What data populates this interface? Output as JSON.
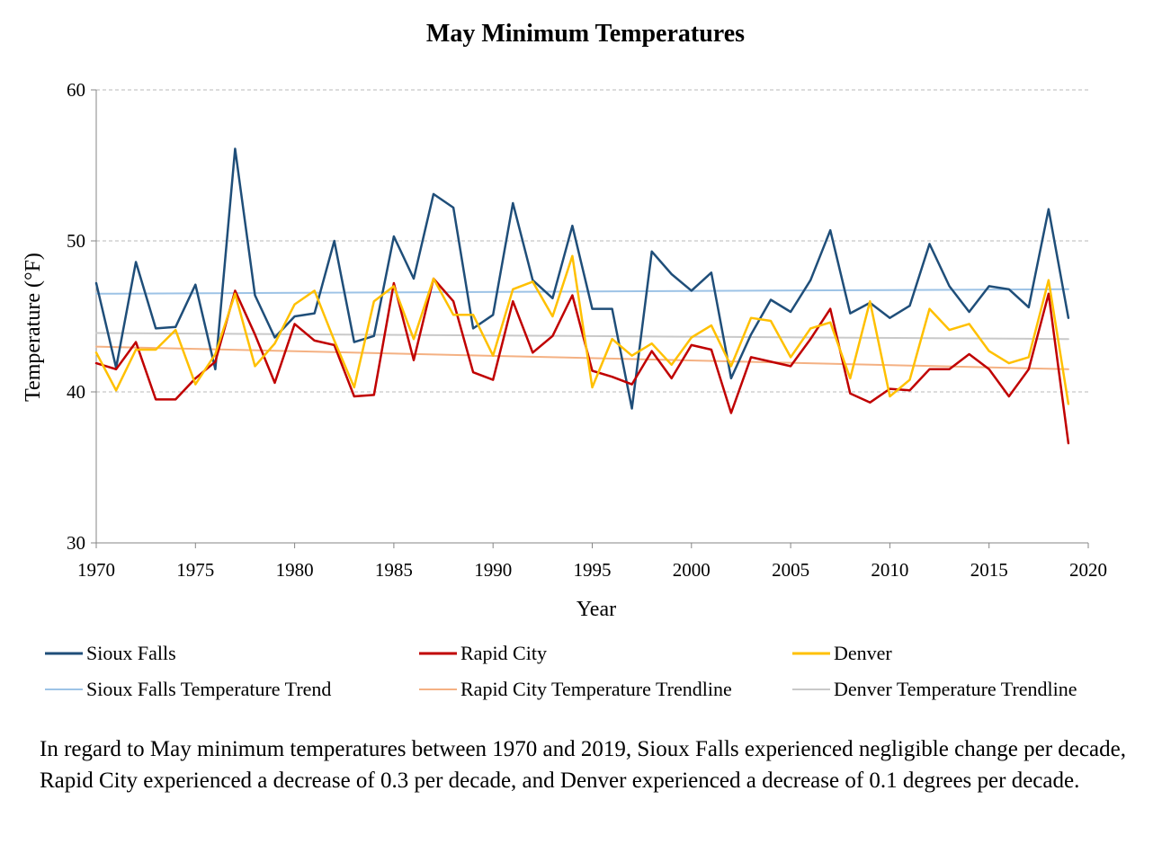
{
  "chart_data": {
    "type": "line",
    "title": "May Minimum Temperatures",
    "xlabel": "Year",
    "ylabel": "Temperature (°F)",
    "xlim": [
      1970,
      2020
    ],
    "ylim": [
      30,
      60
    ],
    "x_ticks": [
      1970,
      1975,
      1980,
      1985,
      1990,
      1995,
      2000,
      2005,
      2010,
      2015,
      2020
    ],
    "y_ticks": [
      30,
      40,
      50,
      60
    ],
    "grid": "horizontal dashed",
    "legend_position": "bottom",
    "x": [
      1970,
      1971,
      1972,
      1973,
      1974,
      1975,
      1976,
      1977,
      1978,
      1979,
      1980,
      1981,
      1982,
      1983,
      1984,
      1985,
      1986,
      1987,
      1988,
      1989,
      1990,
      1991,
      1992,
      1993,
      1994,
      1995,
      1996,
      1997,
      1998,
      1999,
      2000,
      2001,
      2002,
      2003,
      2004,
      2005,
      2006,
      2007,
      2008,
      2009,
      2010,
      2011,
      2012,
      2013,
      2014,
      2015,
      2016,
      2017,
      2018,
      2019
    ],
    "series": [
      {
        "name": "Sioux Falls",
        "color": "#1f4e79",
        "width": 2.5,
        "values": [
          47.2,
          41.6,
          48.6,
          44.2,
          44.3,
          47.1,
          41.5,
          56.1,
          46.4,
          43.6,
          45.0,
          45.2,
          50.0,
          43.3,
          43.7,
          50.3,
          47.5,
          53.1,
          52.2,
          44.2,
          45.1,
          52.5,
          47.4,
          46.2,
          51.0,
          45.5,
          45.5,
          38.9,
          49.3,
          47.8,
          46.7,
          47.9,
          40.9,
          43.8,
          46.1,
          45.3,
          47.4,
          50.7,
          45.2,
          45.9,
          44.9,
          45.7,
          49.8,
          47.0,
          45.3,
          47.0,
          46.8,
          45.6,
          52.1,
          44.9
        ]
      },
      {
        "name": "Rapid City",
        "color": "#c00000",
        "width": 2.5,
        "values": [
          41.9,
          41.5,
          43.3,
          39.5,
          39.5,
          40.9,
          42.0,
          46.7,
          43.8,
          40.6,
          44.5,
          43.4,
          43.1,
          39.7,
          39.8,
          47.2,
          42.1,
          47.5,
          46.0,
          41.3,
          40.8,
          46.0,
          42.6,
          43.7,
          46.4,
          41.4,
          41.0,
          40.5,
          42.7,
          40.9,
          43.1,
          42.8,
          38.6,
          42.3,
          42.0,
          41.7,
          43.5,
          45.5,
          39.9,
          39.3,
          40.2,
          40.1,
          41.5,
          41.5,
          42.5,
          41.5,
          39.7,
          41.5,
          46.5,
          36.6
        ]
      },
      {
        "name": "Denver",
        "color": "#ffc000",
        "width": 2.5,
        "values": [
          42.6,
          40.1,
          42.8,
          42.8,
          44.1,
          40.5,
          42.5,
          46.5,
          41.7,
          43.2,
          45.8,
          46.7,
          43.4,
          40.3,
          46.0,
          47.0,
          43.5,
          47.5,
          45.1,
          45.1,
          42.4,
          46.8,
          47.3,
          45.0,
          49.0,
          40.3,
          43.5,
          42.4,
          43.2,
          41.8,
          43.6,
          44.4,
          41.7,
          44.9,
          44.7,
          42.3,
          44.2,
          44.6,
          40.9,
          46.0,
          39.7,
          40.8,
          45.5,
          44.1,
          44.5,
          42.7,
          41.9,
          42.3,
          47.4,
          39.2
        ]
      },
      {
        "name": "Sioux Falls Temperature Trend",
        "color": "#9dc3e6",
        "width": 2,
        "trend": true,
        "x": [
          1970,
          2019
        ],
        "values": [
          46.5,
          46.8
        ]
      },
      {
        "name": "Rapid City Temperature Trendline",
        "color": "#f4b183",
        "width": 2,
        "trend": true,
        "x": [
          1970,
          2019
        ],
        "values": [
          43.0,
          41.5
        ]
      },
      {
        "name": "Denver Temperature Trendline",
        "color": "#c9c9c9",
        "width": 2,
        "trend": true,
        "x": [
          1970,
          2019
        ],
        "values": [
          43.9,
          43.5
        ]
      }
    ]
  },
  "caption": "In regard to May minimum temperatures between 1970 and 2019, Sioux Falls experienced negligible change per decade, Rapid City experienced a decrease of 0.3 per decade, and Denver experienced a decrease of 0.1 degrees per decade."
}
